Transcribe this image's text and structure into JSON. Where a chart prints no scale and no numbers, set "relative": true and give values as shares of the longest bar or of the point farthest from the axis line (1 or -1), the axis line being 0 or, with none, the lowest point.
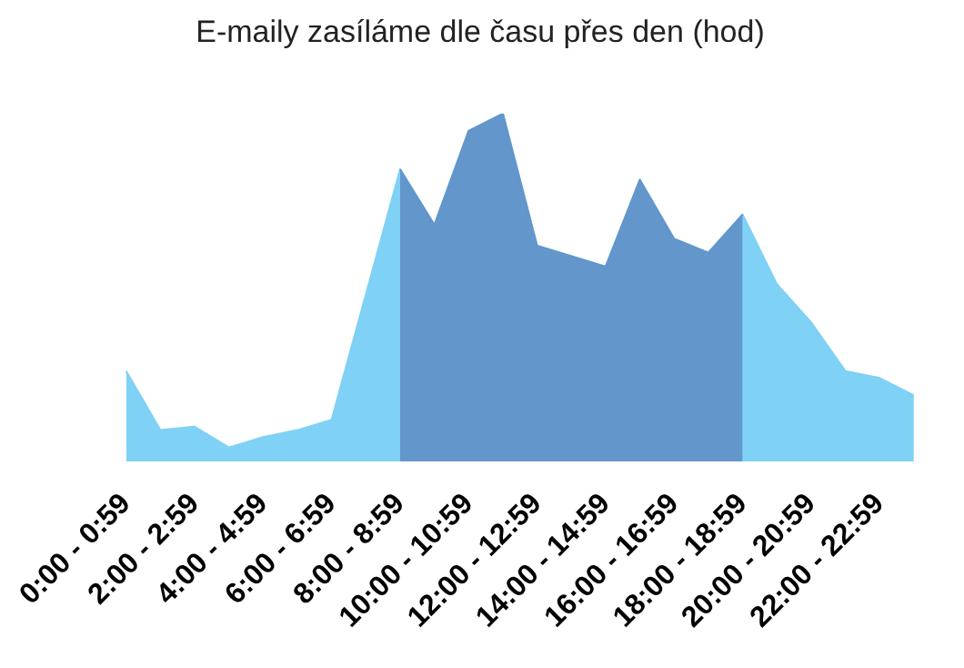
{
  "chart_data": {
    "type": "area",
    "title": "E-maily zasíláme dle času přes den (hod)",
    "relative": true,
    "legend": false,
    "grid": false,
    "categories": [
      "0:00 - 0:59",
      null,
      "2:00 - 2:59",
      null,
      "4:00 - 4:59",
      null,
      "6:00 - 6:59",
      null,
      "8:00 - 8:59",
      null,
      "10:00 - 10:59",
      null,
      "12:00 - 12:59",
      null,
      "14:00 - 14:59",
      null,
      "16:00 - 16:59",
      null,
      "18:00 - 18:59",
      null,
      "20:00 - 20:59",
      null,
      "22:00 - 22:59",
      null
    ],
    "series": [
      {
        "color": "#7fd1f5",
        "values": [
          0.26,
          0.09,
          0.1,
          0.04,
          0.07,
          0.09,
          0.12,
          0.48,
          0.84,
          0.68,
          0.95,
          1,
          0.62,
          0.59,
          0.56,
          0.81,
          0.64,
          0.6,
          0.71,
          0.51,
          0.4,
          0.26,
          0.24,
          0.19
        ]
      },
      {
        "color": "#6396cb",
        "values": [
          null,
          null,
          null,
          null,
          null,
          null,
          null,
          null,
          0.84,
          0.68,
          0.95,
          1,
          0.62,
          0.59,
          0.56,
          0.81,
          0.64,
          0.6,
          0.71,
          null,
          null,
          null,
          null,
          null
        ]
      }
    ]
  }
}
